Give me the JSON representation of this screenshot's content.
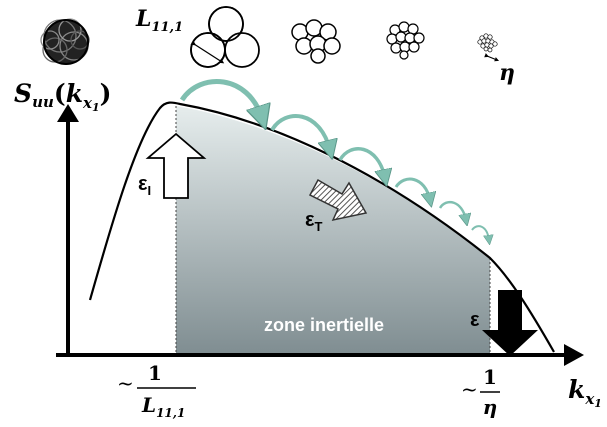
{
  "y_axis": {
    "main": "S",
    "sub_main": "uu",
    "open": "(",
    "var": "k",
    "sub": "x",
    "subsub": "1",
    "close": ")"
  },
  "x_axis": {
    "var": "k",
    "sub": "x",
    "subsub": "1"
  },
  "top_labels": {
    "integral_scale": "L",
    "integral_scale_sub": "11,1",
    "kolmogorov": "η"
  },
  "tick_left": {
    "tilde": "~",
    "numerator": "1",
    "denominator": "L",
    "denominator_sub": "11,1"
  },
  "tick_right": {
    "tilde": "~",
    "numerator": "1",
    "denominator": "η"
  },
  "epsilon_labels": {
    "injection": {
      "symbol": "ε",
      "sub": "I"
    },
    "transfer": {
      "symbol": "ε",
      "sub": "T"
    },
    "dissipation": {
      "symbol": "ε"
    }
  },
  "region_label": "zone inertielle",
  "colors": {
    "curve": "#000000",
    "cascade_arrows": "#7fbfb0",
    "inertial_top": "#e6eded",
    "inertial_bottom": "#7f8d91",
    "region_text": "#ffffff"
  }
}
